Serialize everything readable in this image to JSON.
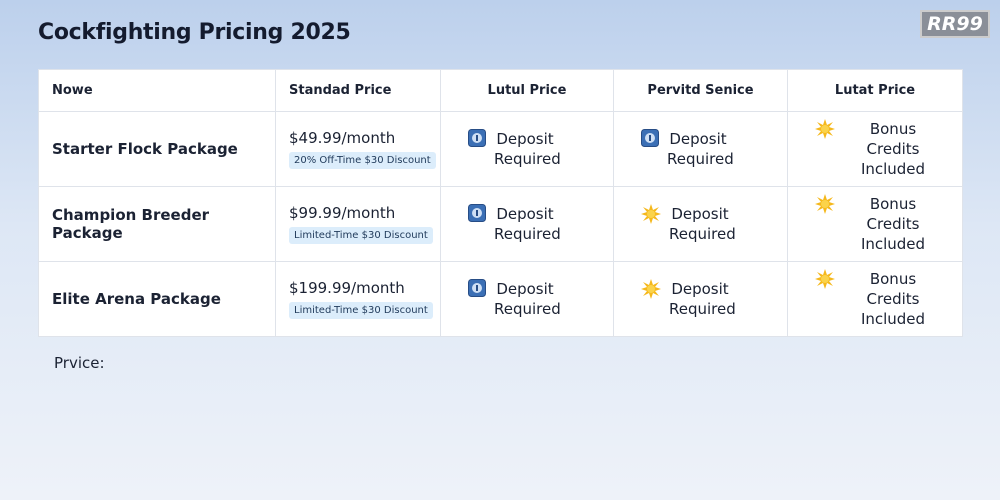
{
  "header": {
    "title": "Cockfighting Pricing 2025",
    "logo": "RR99"
  },
  "table": {
    "columns": [
      "Nowe",
      "Standad Price",
      "Lutul Price",
      "Pervitd Senice",
      "Lutat Price"
    ],
    "rows": [
      [
        "Starter Flock Package",
        {
          "price": "$49.99/month",
          "badge": "20% Off-Time $30 Discount"
        },
        "Deposit Required",
        "Deposit Required",
        "Bonus Credits Included"
      ],
      [
        "Champion Breeder Package",
        {
          "price": "$99.99/month",
          "badge": "Limited-Time $30 Discount"
        },
        "Deposit Required",
        "Deposit Required",
        "Bonus Credits Included"
      ],
      [
        "Elite Arena Package",
        {
          "price": "$199.99/month",
          "badge": "Limited-Time $30 Discount"
        },
        "Deposit Required",
        "Deposit Required",
        "Bonus Credits Included"
      ]
    ]
  },
  "footer": {
    "label": "Prvice:"
  }
}
